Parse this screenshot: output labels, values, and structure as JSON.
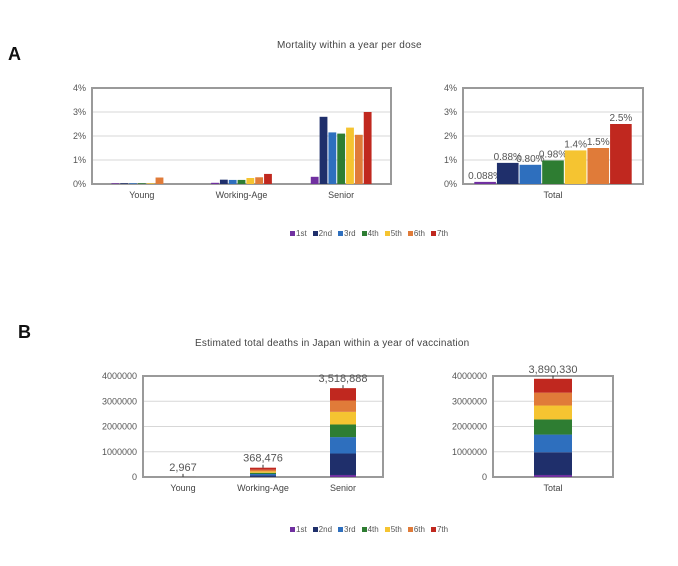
{
  "panels": {
    "a": {
      "label": "A",
      "title": "Mortality within a year per dose"
    },
    "b": {
      "label": "B",
      "title": "Estimated total deaths in Japan within a year of vaccination"
    }
  },
  "legend": [
    "1st",
    "2nd",
    "3rd",
    "4th",
    "5th",
    "6th",
    "7th"
  ],
  "colors": [
    "#7030a0",
    "#1f2f6b",
    "#2e6fbe",
    "#2e7d32",
    "#f5c431",
    "#e07b39",
    "#c0281f"
  ],
  "chart_data": [
    {
      "id": "a-left",
      "type": "bar",
      "title": "Mortality within a year per dose",
      "categories": [
        "Young",
        "Working-Age",
        "Senior"
      ],
      "series": [
        {
          "name": "1st",
          "values": [
            0.03,
            0.05,
            0.3
          ]
        },
        {
          "name": "2nd",
          "values": [
            0.03,
            0.18,
            2.8
          ]
        },
        {
          "name": "3rd",
          "values": [
            0.03,
            0.17,
            2.15
          ]
        },
        {
          "name": "4th",
          "values": [
            0.03,
            0.17,
            2.1
          ]
        },
        {
          "name": "5th",
          "values": [
            0.03,
            0.25,
            2.35
          ]
        },
        {
          "name": "6th",
          "values": [
            0.27,
            0.28,
            2.05
          ]
        },
        {
          "name": "7th",
          "values": [
            0.0,
            0.42,
            3.0
          ]
        }
      ],
      "yticks": [
        "0%",
        "1%",
        "2%",
        "3%",
        "4%"
      ],
      "ylim": [
        0,
        4
      ]
    },
    {
      "id": "a-right",
      "type": "bar",
      "categories": [
        "Total"
      ],
      "series": [
        {
          "name": "1st",
          "values": [
            0.088
          ],
          "label": "0.088%"
        },
        {
          "name": "2nd",
          "values": [
            0.88
          ],
          "label": "0.88%"
        },
        {
          "name": "3rd",
          "values": [
            0.8
          ],
          "label": "0.80%"
        },
        {
          "name": "4th",
          "values": [
            0.98
          ],
          "label": "0.98%"
        },
        {
          "name": "5th",
          "values": [
            1.4
          ],
          "label": "1.4%"
        },
        {
          "name": "6th",
          "values": [
            1.5
          ],
          "label": "1.5%"
        },
        {
          "name": "7th",
          "values": [
            2.5
          ],
          "label": "2.5%"
        }
      ],
      "yticks": [
        "0%",
        "1%",
        "2%",
        "3%",
        "4%"
      ],
      "ylim": [
        0,
        4
      ]
    },
    {
      "id": "b-left",
      "type": "bar",
      "stacked": true,
      "title": "Estimated total deaths in Japan within a year of vaccination",
      "categories": [
        "Young",
        "Working-Age",
        "Senior"
      ],
      "series": [
        {
          "name": "1st",
          "values": [
            300,
            3000,
            80000
          ]
        },
        {
          "name": "2nd",
          "values": [
            500,
            60000,
            850000
          ]
        },
        {
          "name": "3rd",
          "values": [
            400,
            55000,
            650000
          ]
        },
        {
          "name": "4th",
          "values": [
            400,
            50000,
            500000
          ]
        },
        {
          "name": "5th",
          "values": [
            400,
            55000,
            500000
          ]
        },
        {
          "name": "6th",
          "values": [
            500,
            65000,
            450000
          ]
        },
        {
          "name": "7th",
          "values": [
            467,
            80476,
            488888
          ]
        }
      ],
      "totals": [
        2967,
        368476,
        3518888
      ],
      "total_labels": [
        "2,967",
        "368,476",
        "3,518,888"
      ],
      "yticks": [
        "0",
        "1000000",
        "2000000",
        "3000000",
        "4000000"
      ],
      "ylim": [
        0,
        4000000
      ]
    },
    {
      "id": "b-right",
      "type": "bar",
      "stacked": true,
      "categories": [
        "Total"
      ],
      "series": [
        {
          "name": "1st",
          "values": [
            80000
          ]
        },
        {
          "name": "2nd",
          "values": [
            900000
          ]
        },
        {
          "name": "3rd",
          "values": [
            700000
          ]
        },
        {
          "name": "4th",
          "values": [
            600000
          ]
        },
        {
          "name": "5th",
          "values": [
            550000
          ]
        },
        {
          "name": "6th",
          "values": [
            510000
          ]
        },
        {
          "name": "7th",
          "values": [
            550330
          ]
        }
      ],
      "totals": [
        3890330
      ],
      "total_labels": [
        "3,890,330"
      ],
      "yticks": [
        "0",
        "1000000",
        "2000000",
        "3000000",
        "4000000"
      ],
      "ylim": [
        0,
        4000000
      ]
    }
  ]
}
